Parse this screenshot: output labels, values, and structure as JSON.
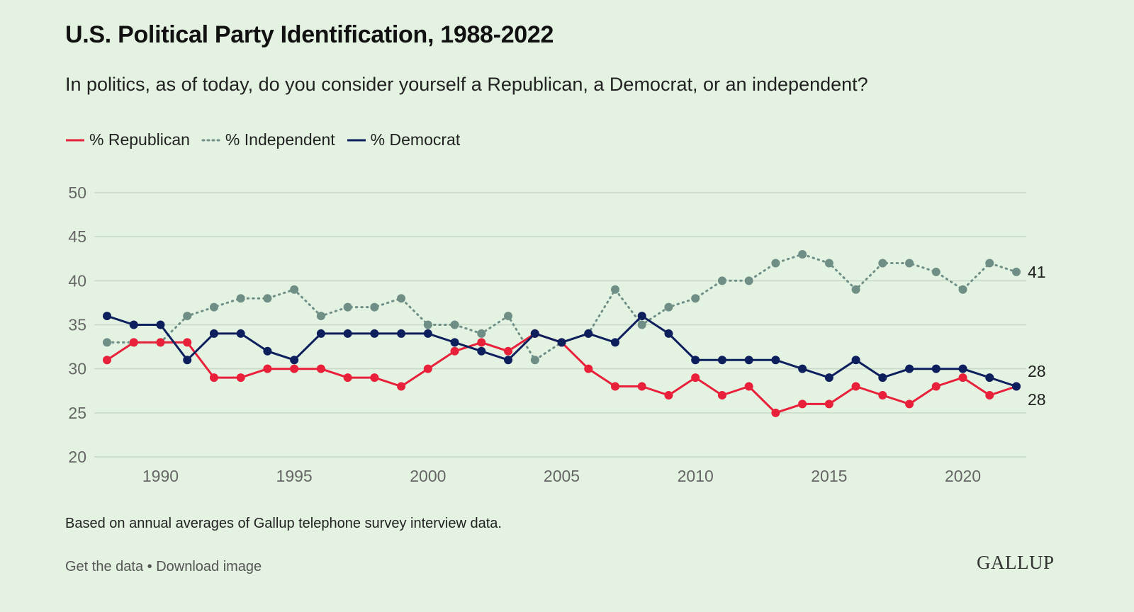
{
  "header": {
    "title": "U.S. Political Party Identification, 1988-2022",
    "subtitle": "In politics, as of today, do you consider yourself a Republican, a Democrat, or an independent?"
  },
  "legend": {
    "republican": "% Republican",
    "independent": "% Independent",
    "democrat": "% Democrat"
  },
  "colors": {
    "background": "#e4f2e2",
    "republican": "#e8203a",
    "independent": "#6f8f86",
    "democrat": "#0d1f5c",
    "grid": "#c7d8c6"
  },
  "chart_data": {
    "type": "line",
    "x": [
      1988,
      1989,
      1990,
      1991,
      1992,
      1993,
      1994,
      1995,
      1996,
      1997,
      1998,
      1999,
      2000,
      2001,
      2002,
      2003,
      2004,
      2005,
      2006,
      2007,
      2008,
      2009,
      2010,
      2011,
      2012,
      2013,
      2014,
      2015,
      2016,
      2017,
      2018,
      2019,
      2020,
      2021,
      2022
    ],
    "series": [
      {
        "name": "% Republican",
        "key": "republican",
        "style": "solid",
        "values": [
          31,
          33,
          33,
          33,
          29,
          29,
          30,
          30,
          30,
          29,
          29,
          28,
          30,
          32,
          33,
          32,
          34,
          33,
          30,
          28,
          28,
          27,
          29,
          27,
          28,
          25,
          26,
          26,
          28,
          27,
          26,
          28,
          29,
          27,
          28
        ]
      },
      {
        "name": "% Independent",
        "key": "independent",
        "style": "dotted",
        "values": [
          33,
          33,
          33,
          36,
          37,
          38,
          38,
          39,
          36,
          37,
          37,
          38,
          35,
          35,
          34,
          36,
          31,
          33,
          34,
          39,
          35,
          37,
          38,
          40,
          40,
          42,
          43,
          42,
          39,
          42,
          42,
          41,
          39,
          42,
          41
        ]
      },
      {
        "name": "% Democrat",
        "key": "democrat",
        "style": "solid",
        "values": [
          36,
          35,
          35,
          31,
          34,
          34,
          32,
          31,
          34,
          34,
          34,
          34,
          34,
          33,
          32,
          31,
          34,
          33,
          34,
          33,
          36,
          34,
          31,
          31,
          31,
          31,
          30,
          29,
          31,
          29,
          30,
          30,
          30,
          29,
          28
        ]
      }
    ],
    "xticks": [
      1990,
      1995,
      2000,
      2005,
      2010,
      2015,
      2020
    ],
    "yticks": [
      20,
      25,
      30,
      35,
      40,
      45,
      50
    ],
    "ylim": [
      20,
      50
    ],
    "end_labels": [
      {
        "key": "independent",
        "text": "41"
      },
      {
        "key": "democrat",
        "text": "28"
      },
      {
        "key": "republican",
        "text": "28"
      }
    ],
    "grid": true,
    "legend_position": "top-left"
  },
  "note": "Based on annual averages of Gallup telephone survey interview data.",
  "footer": {
    "get_data": "Get the data",
    "separator": " • ",
    "download": "Download image",
    "brand": "GALLUP"
  }
}
